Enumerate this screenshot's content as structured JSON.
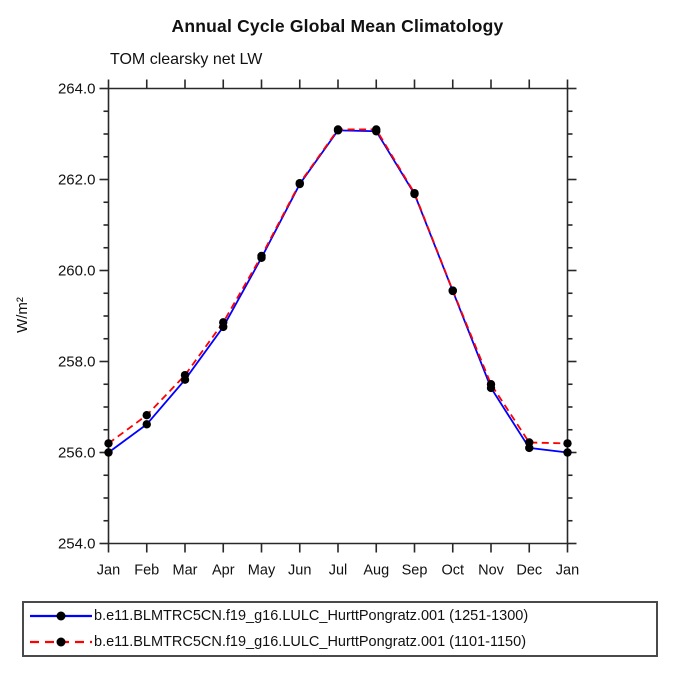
{
  "title": "Annual Cycle Global Mean Climatology",
  "subtitle": "TOM clearsky net LW",
  "colors": {
    "series1": "#0000ff",
    "series2": "#ff0000",
    "marker": "#000000",
    "axis": "#282828",
    "text": "#111111"
  },
  "chart_data": {
    "type": "line",
    "title": "Annual Cycle Global Mean Climatology",
    "subtitle": "TOM clearsky net LW",
    "ylabel": "W/m²",
    "xlabel": "",
    "categories": [
      "Jan",
      "Feb",
      "Mar",
      "Apr",
      "May",
      "Jun",
      "Jul",
      "Aug",
      "Sep",
      "Oct",
      "Nov",
      "Dec",
      "Jan"
    ],
    "series": [
      {
        "name": "b.e11.BLMTRC5CN.f19_g16.LULC_HurttPongratz.001 (1251-1300)",
        "color": "#0000ff",
        "style": "solid",
        "marker": "filled-circle",
        "values": [
          256.0,
          256.62,
          257.6,
          258.76,
          260.28,
          261.9,
          263.08,
          263.06,
          261.68,
          259.55,
          257.42,
          256.1,
          256.0
        ]
      },
      {
        "name": "b.e11.BLMTRC5CN.f19_g16.LULC_HurttPongratz.001 (1101-1150)",
        "color": "#ff0000",
        "style": "dashed",
        "marker": "filled-circle",
        "values": [
          256.2,
          256.82,
          257.7,
          258.86,
          260.32,
          261.92,
          263.1,
          263.1,
          261.7,
          259.56,
          257.5,
          256.22,
          256.2
        ]
      }
    ],
    "ylim": [
      254.0,
      264.0
    ],
    "ytick_major": 2.0,
    "ytick_minor": 0.5,
    "ytick_labels": [
      "254.0",
      "256.0",
      "258.0",
      "260.0",
      "262.0",
      "264.0"
    ],
    "grid": false,
    "legend_position": "bottom"
  }
}
